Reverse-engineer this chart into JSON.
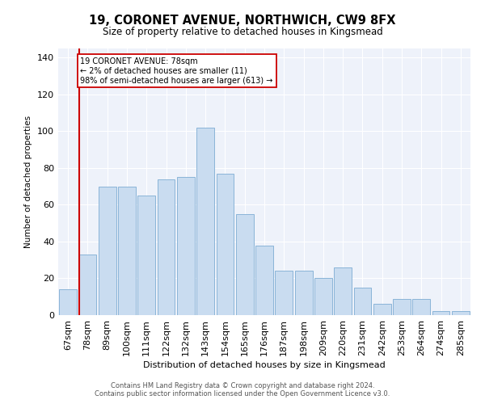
{
  "title": "19, CORONET AVENUE, NORTHWICH, CW9 8FX",
  "subtitle": "Size of property relative to detached houses in Kingsmead",
  "xlabel": "Distribution of detached houses by size in Kingsmead",
  "ylabel": "Number of detached properties",
  "categories": [
    "67sqm",
    "78sqm",
    "89sqm",
    "100sqm",
    "111sqm",
    "122sqm",
    "132sqm",
    "143sqm",
    "154sqm",
    "165sqm",
    "176sqm",
    "187sqm",
    "198sqm",
    "209sqm",
    "220sqm",
    "231sqm",
    "242sqm",
    "253sqm",
    "264sqm",
    "274sqm",
    "285sqm"
  ],
  "values": [
    14,
    33,
    70,
    70,
    65,
    74,
    75,
    102,
    77,
    55,
    38,
    24,
    24,
    20,
    26,
    15,
    6,
    9,
    9,
    2,
    2
  ],
  "bar_color": "#c9dcf0",
  "bar_edge_color": "#8ab4d8",
  "highlight_bar_index": 1,
  "highlight_line_color": "#cc0000",
  "ylim": [
    0,
    145
  ],
  "yticks": [
    0,
    20,
    40,
    60,
    80,
    100,
    120,
    140
  ],
  "background_color": "#eef2fa",
  "grid_color": "#ffffff",
  "annotation_text": "19 CORONET AVENUE: 78sqm\n← 2% of detached houses are smaller (11)\n98% of semi-detached houses are larger (613) →",
  "footer_line1": "Contains HM Land Registry data © Crown copyright and database right 2024.",
  "footer_line2": "Contains public sector information licensed under the Open Government Licence v3.0."
}
